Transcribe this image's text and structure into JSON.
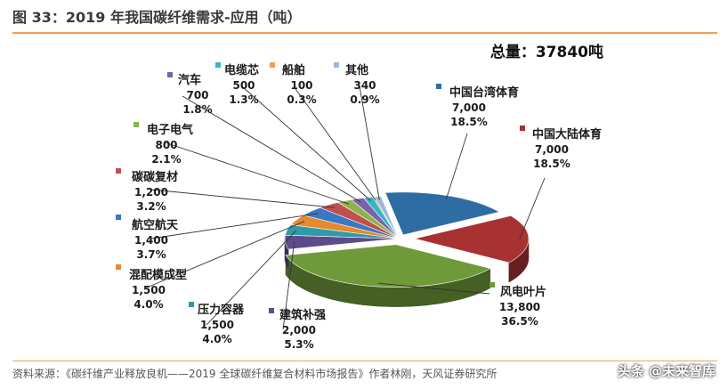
{
  "figure": {
    "title": "图 33：2019 年我国碳纤维需求-应用（吨）",
    "total_label": "总量：37840吨",
    "source": "资料来源：《碳纤维产业释放良机——2019 全球碳纤维复合材料市场报告》作者林刚，天风证券研究所",
    "watermark": "头条 @未来智库"
  },
  "chart_data": {
    "type": "pie",
    "title": "图 33：2019 年我国碳纤维需求-应用（吨）",
    "unit": "吨",
    "total": 37840,
    "slices": [
      {
        "label": "中国台湾体育",
        "value": 7000,
        "value_label": "7,000",
        "pct_label": "18.5%",
        "color": "#2e6da4"
      },
      {
        "label": "中国大陆体育",
        "value": 7000,
        "value_label": "7,000",
        "pct_label": "18.5%",
        "color": "#a83232"
      },
      {
        "label": "风电叶片",
        "value": 13800,
        "value_label": "13,800",
        "pct_label": "36.5%",
        "color": "#6f9a3a"
      },
      {
        "label": "建筑补强",
        "value": 2000,
        "value_label": "2,000",
        "pct_label": "5.3%",
        "color": "#5e4b8b"
      },
      {
        "label": "压力容器",
        "value": 1500,
        "value_label": "1,500",
        "pct_label": "4.0%",
        "color": "#2f9aa8"
      },
      {
        "label": "混配模成型",
        "value": 1500,
        "value_label": "1,500",
        "pct_label": "4.0%",
        "color": "#e58a2e"
      },
      {
        "label": "航空航天",
        "value": 1400,
        "value_label": "1,400",
        "pct_label": "3.7%",
        "color": "#3a78c3"
      },
      {
        "label": "碳碳复材",
        "value": 1200,
        "value_label": "1,200",
        "pct_label": "3.2%",
        "color": "#c0504d"
      },
      {
        "label": "电子电气",
        "value": 800,
        "value_label": "800",
        "pct_label": "2.1%",
        "color": "#8fb24c"
      },
      {
        "label": "汽车",
        "value": 700,
        "value_label": "700",
        "pct_label": "1.8%",
        "color": "#7a62a8"
      },
      {
        "label": "电缆芯",
        "value": 500,
        "value_label": "500",
        "pct_label": "1.3%",
        "color": "#35b5c9"
      },
      {
        "label": "船舶",
        "value": 100,
        "value_label": "100",
        "pct_label": "0.3%",
        "color": "#f0a050"
      },
      {
        "label": "其他",
        "value": 340,
        "value_label": "340",
        "pct_label": "0.9%",
        "color": "#9ab8de"
      }
    ]
  }
}
